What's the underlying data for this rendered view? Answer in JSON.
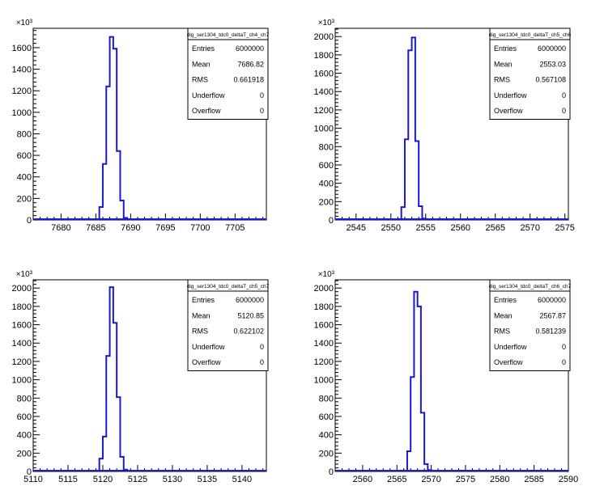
{
  "chart_data": [
    {
      "type": "histogram",
      "stats_title": "dig_ser1304_tdc0_deltaT_ch4_ch7",
      "stats": [
        {
          "label": "Entries",
          "value": "6000000"
        },
        {
          "label": "Mean",
          "value": "7686.82"
        },
        {
          "label": "RMS",
          "value": "0.661918"
        },
        {
          "label": "Underflow",
          "value": "0"
        },
        {
          "label": "Overflow",
          "value": "0"
        }
      ],
      "y_multiplier": "×10³",
      "xlim": [
        7676,
        7709.5
      ],
      "ylim": [
        0,
        1780
      ],
      "xticks": [
        7680,
        7685,
        7690,
        7695,
        7700,
        7705
      ],
      "yticks": [
        0,
        200,
        400,
        600,
        800,
        1000,
        1200,
        1400,
        1600
      ],
      "bin_width": 0.5,
      "bin_edges_start": 7685.5,
      "bin_contents": [
        120,
        520,
        1240,
        1700,
        1590,
        640,
        180,
        20
      ]
    },
    {
      "type": "histogram",
      "stats_title": "dig_ser1304_tdc0_deltaT_ch5_ch6",
      "stats": [
        {
          "label": "Entries",
          "value": "6000000"
        },
        {
          "label": "Mean",
          "value": "2553.03"
        },
        {
          "label": "RMS",
          "value": "0.567108"
        },
        {
          "label": "Underflow",
          "value": "0"
        },
        {
          "label": "Overflow",
          "value": "0"
        }
      ],
      "y_multiplier": "×10³",
      "xlim": [
        2542,
        2575.5
      ],
      "ylim": [
        0,
        2090
      ],
      "xticks": [
        2545,
        2550,
        2555,
        2560,
        2565,
        2570,
        2575
      ],
      "yticks": [
        0,
        200,
        400,
        600,
        800,
        1000,
        1200,
        1400,
        1600,
        1800,
        2000
      ],
      "bin_width": 0.5,
      "bin_edges_start": 2551.5,
      "bin_contents": [
        140,
        880,
        1850,
        1990,
        860,
        150,
        15
      ]
    },
    {
      "type": "histogram",
      "stats_title": "dig_ser1304_tdc0_deltaT_ch5_ch7",
      "stats": [
        {
          "label": "Entries",
          "value": "6000000"
        },
        {
          "label": "Mean",
          "value": "5120.85"
        },
        {
          "label": "RMS",
          "value": "0.622102"
        },
        {
          "label": "Underflow",
          "value": "0"
        },
        {
          "label": "Overflow",
          "value": "0"
        }
      ],
      "y_multiplier": "×10³",
      "xlim": [
        5110,
        5143.5
      ],
      "ylim": [
        0,
        2090
      ],
      "xticks": [
        5110,
        5115,
        5120,
        5125,
        5130,
        5135,
        5140
      ],
      "yticks": [
        0,
        200,
        400,
        600,
        800,
        1000,
        1200,
        1400,
        1600,
        1800,
        2000
      ],
      "bin_width": 0.5,
      "bin_edges_start": 5119.5,
      "bin_contents": [
        140,
        380,
        1260,
        2010,
        1620,
        810,
        160,
        20
      ]
    },
    {
      "type": "histogram",
      "stats_title": "dig_ser1304_tdc0_deltaT_ch6_ch7",
      "stats": [
        {
          "label": "Entries",
          "value": "6000000"
        },
        {
          "label": "Mean",
          "value": "2567.87"
        },
        {
          "label": "RMS",
          "value": "0.581239"
        },
        {
          "label": "Underflow",
          "value": "0"
        },
        {
          "label": "Overflow",
          "value": "0"
        }
      ],
      "y_multiplier": "×10³",
      "xlim": [
        2556,
        2590
      ],
      "ylim": [
        0,
        2090
      ],
      "xticks": [
        2560,
        2565,
        2570,
        2575,
        2580,
        2585,
        2590
      ],
      "yticks": [
        0,
        200,
        400,
        600,
        800,
        1000,
        1200,
        1400,
        1600,
        1800,
        2000
      ],
      "bin_width": 0.5,
      "bin_edges_start": 2566.5,
      "bin_contents": [
        220,
        1030,
        1960,
        1800,
        640,
        80,
        15
      ]
    }
  ],
  "colors": {
    "histogram_line": "#1a1acc",
    "axis": "#000000",
    "background": "#ffffff"
  }
}
